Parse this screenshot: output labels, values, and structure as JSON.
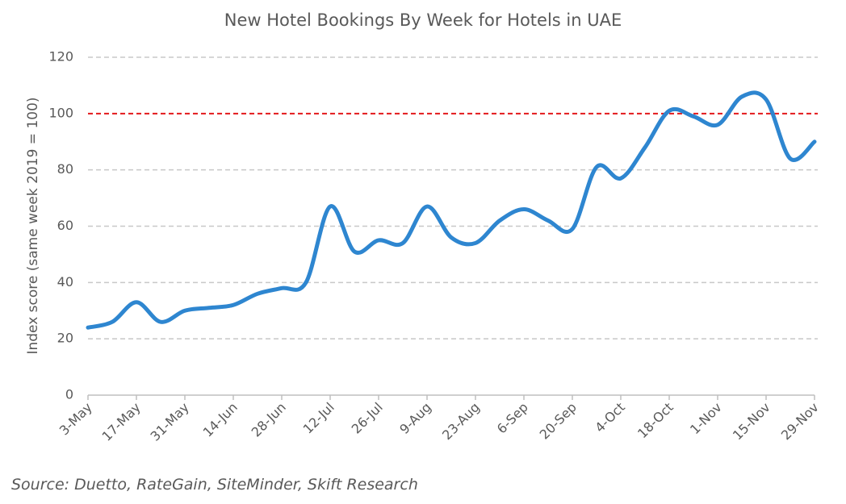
{
  "chart_data": {
    "type": "line",
    "title": "New Hotel Bookings By Week for Hotels in UAE",
    "y_label": "Index score (same week 2019 = 100)",
    "source": "Source: Duetto, RateGain, SiteMinder, Skift Research",
    "categories": [
      "3-May",
      null,
      "17-May",
      null,
      "31-May",
      null,
      "14-Jun",
      null,
      "28-Jun",
      null,
      "12-Jul",
      null,
      "26-Jul",
      null,
      "9-Aug",
      null,
      "23-Aug",
      null,
      "6-Sep",
      null,
      "20-Sep",
      null,
      "4-Oct",
      null,
      "18-Oct",
      null,
      "1-Nov",
      null,
      "15-Nov",
      null,
      "29-Nov"
    ],
    "series": [
      {
        "name": "UAE",
        "color": "#2e86d0",
        "values": [
          24,
          26,
          33,
          26,
          30,
          31,
          32,
          36,
          38,
          40,
          67,
          51,
          55,
          54,
          67,
          56,
          54,
          62,
          66,
          62,
          59,
          81,
          77,
          88,
          101,
          99,
          96,
          106,
          105,
          84,
          90
        ]
      }
    ],
    "reference_line": {
      "value": 100,
      "color": "#e31a1c"
    },
    "ylim": [
      0,
      120
    ],
    "yticks": [
      0,
      20,
      40,
      60,
      80,
      100,
      120
    ],
    "grid": true
  }
}
